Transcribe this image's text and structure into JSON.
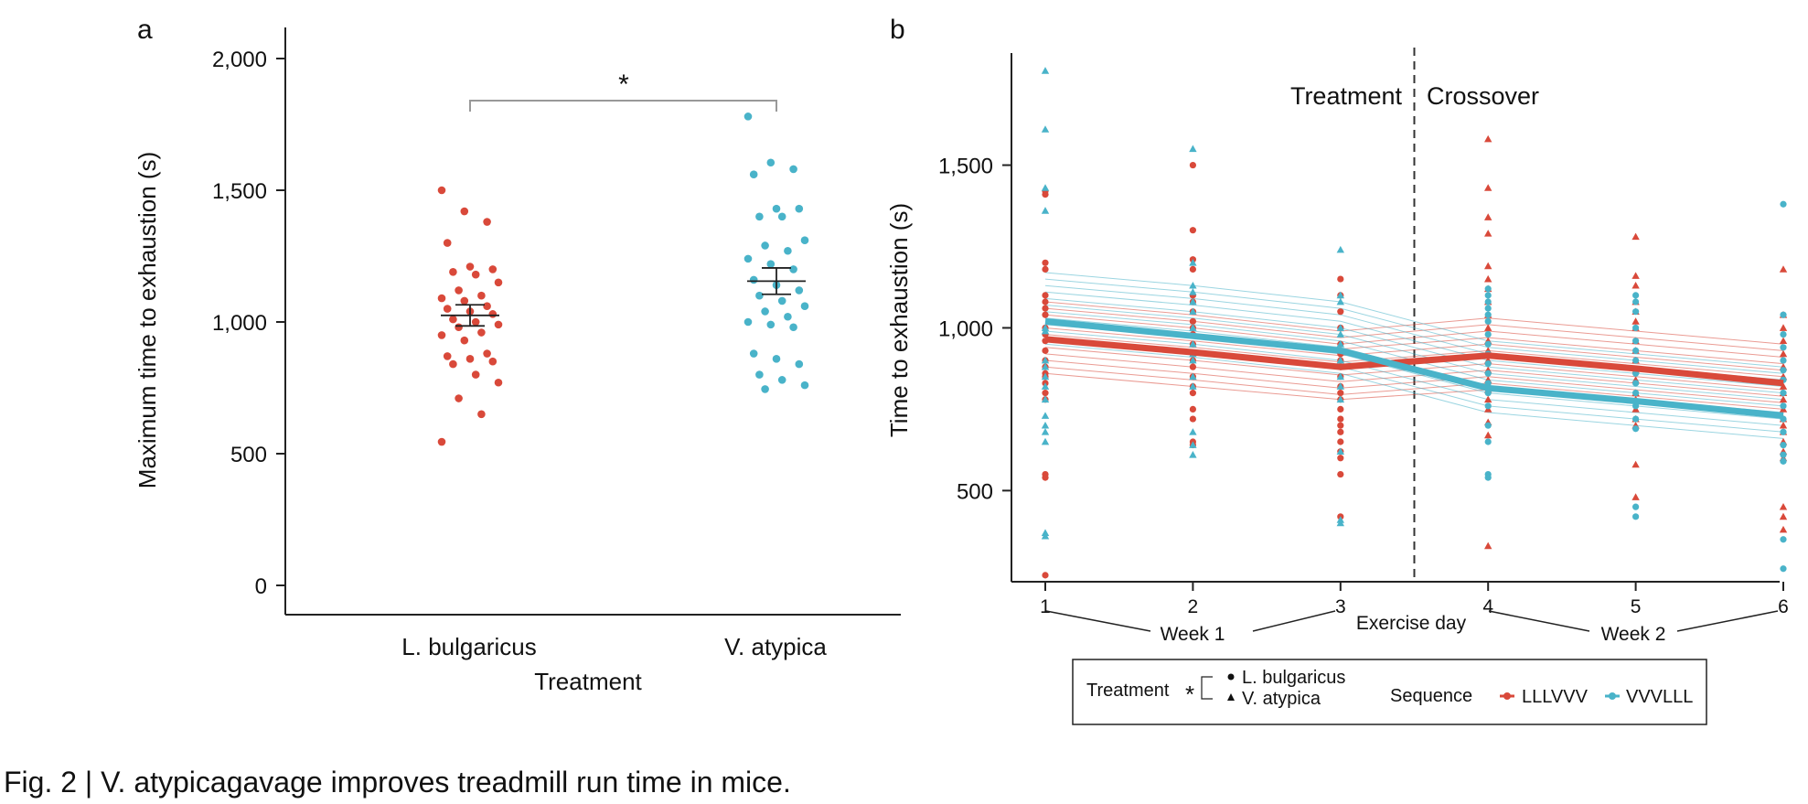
{
  "caption": "Fig. 2 | V. atypicagavage improves treadmill run time in mice.",
  "colors": {
    "red": "#d9493a",
    "blue": "#49b3c9",
    "axis": "#222222",
    "bracket": "#999999"
  },
  "chart_data": [
    {
      "panel": "a",
      "type": "scatter",
      "xlabel": "Treatment",
      "ylabel": "Maximum time to exhaustion (s)",
      "ylim": [
        0,
        2000
      ],
      "yticks": [
        "0",
        "500",
        "1,000",
        "1,500",
        "2,000"
      ],
      "categories": [
        "L. bulgaricus",
        "V. atypica"
      ],
      "significance": "*",
      "series": [
        {
          "name": "L. bulgaricus",
          "color": "#d9493a",
          "mean": 1025,
          "sem": 40,
          "values": [
            1500,
            1420,
            1380,
            1300,
            1210,
            1200,
            1190,
            1180,
            1150,
            1120,
            1100,
            1090,
            1080,
            1060,
            1050,
            1040,
            1030,
            1010,
            1000,
            990,
            980,
            960,
            950,
            930,
            880,
            870,
            860,
            850,
            840,
            800,
            770,
            710,
            650,
            545
          ]
        },
        {
          "name": "V. atypica",
          "color": "#49b3c9",
          "mean": 1155,
          "sem": 50,
          "values": [
            1780,
            1605,
            1580,
            1560,
            1430,
            1430,
            1400,
            1400,
            1310,
            1290,
            1270,
            1240,
            1220,
            1200,
            1160,
            1140,
            1120,
            1100,
            1080,
            1060,
            1040,
            1020,
            1000,
            990,
            980,
            880,
            860,
            840,
            800,
            780,
            760,
            745
          ]
        }
      ]
    },
    {
      "panel": "b",
      "type": "line",
      "xlabel": "Exercise day",
      "ylabel": "Time to exhaustion (s)",
      "x": [
        1,
        2,
        3,
        4,
        5,
        6
      ],
      "xtick_labels": [
        "1",
        "2",
        "3",
        "4",
        "5",
        "6"
      ],
      "ylim": [
        220,
        1850
      ],
      "yticks": [
        "500",
        "1,000",
        "1,500"
      ],
      "week_labels": [
        "Week 1",
        "Week 2"
      ],
      "phase_labels": [
        "Treatment",
        "Crossover"
      ],
      "crossover_at": 3.5,
      "series": [
        {
          "name": "LLLVVV",
          "color": "#d9493a",
          "mean": [
            965,
            925,
            880,
            915,
            875,
            830
          ],
          "subjects": [
            [
              1080,
              1040,
              990,
              1030,
              990,
              950
            ],
            [
              1060,
              1020,
              970,
              1010,
              970,
              930
            ],
            [
              1040,
              1000,
              950,
              990,
              950,
              910
            ],
            [
              1020,
              980,
              935,
              970,
              930,
              890
            ],
            [
              1000,
              960,
              915,
              950,
              910,
              870
            ],
            [
              980,
              940,
              895,
              930,
              890,
              850
            ],
            [
              960,
              920,
              875,
              910,
              870,
              830
            ],
            [
              940,
              900,
              855,
              890,
              850,
              810
            ],
            [
              920,
              880,
              835,
              870,
              830,
              790
            ],
            [
              900,
              860,
              815,
              850,
              810,
              770
            ],
            [
              880,
              840,
              795,
              830,
              790,
              750
            ],
            [
              860,
              820,
              780,
              810,
              770,
              730
            ]
          ],
          "points": [
            [
              1420,
              1410,
              1200,
              1180,
              1100,
              1080,
              1060,
              1040,
              1000,
              980,
              960,
              930,
              900,
              880,
              860,
              850,
              830,
              800,
              780,
              550,
              540,
              240
            ],
            [
              1500,
              1300,
              1210,
              1180,
              1100,
              1080,
              1050,
              1020,
              1000,
              980,
              950,
              920,
              900,
              880,
              850,
              820,
              800,
              750,
              720,
              650,
              640
            ],
            [
              1150,
              1100,
              1050,
              1000,
              950,
              920,
              900,
              880,
              850,
              820,
              800,
              780,
              750,
              720,
              700,
              680,
              650,
              620,
              600,
              550,
              420
            ],
            [
              1580,
              1430,
              1340,
              1290,
              1190,
              1150,
              1120,
              1080,
              1040,
              1000,
              960,
              930,
              900,
              870,
              840,
              810,
              780,
              750,
              710,
              670,
              330
            ],
            [
              1280,
              1160,
              1130,
              1080,
              1050,
              1020,
              1000,
              960,
              930,
              900,
              870,
              840,
              800,
              780,
              750,
              720,
              700,
              580,
              480
            ],
            [
              1180,
              1040,
              1000,
              960,
              920,
              880,
              850,
              820,
              800,
              780,
              750,
              720,
              700,
              680,
              650,
              620,
              600,
              450,
              420,
              380
            ]
          ]
        },
        {
          "name": "VVVLLL",
          "color": "#49b3c9",
          "mean": [
            1020,
            975,
            930,
            815,
            775,
            730
          ],
          "subjects": [
            [
              1170,
              1130,
              1080,
              960,
              920,
              880
            ],
            [
              1150,
              1110,
              1060,
              940,
              900,
              860
            ],
            [
              1130,
              1090,
              1040,
              920,
              880,
              840
            ],
            [
              1110,
              1070,
              1020,
              900,
              860,
              820
            ],
            [
              1090,
              1050,
              1000,
              880,
              840,
              800
            ],
            [
              1070,
              1030,
              980,
              860,
              820,
              780
            ],
            [
              1050,
              1010,
              960,
              840,
              800,
              760
            ],
            [
              1030,
              990,
              940,
              820,
              780,
              740
            ],
            [
              1010,
              970,
              920,
              800,
              760,
              720
            ],
            [
              990,
              950,
              900,
              780,
              740,
              700
            ],
            [
              970,
              930,
              880,
              760,
              720,
              680
            ],
            [
              950,
              910,
              860,
              740,
              700,
              660
            ]
          ],
          "points": [
            [
              1790,
              1610,
              1430,
              1360,
              1000,
              990,
              900,
              880,
              850,
              820,
              780,
              730,
              700,
              680,
              650,
              370,
              360
            ],
            [
              1550,
              1200,
              1130,
              1110,
              1080,
              1050,
              1000,
              950,
              920,
              900,
              850,
              820,
              680,
              640,
              610
            ],
            [
              1240,
              1100,
              1080,
              1000,
              980,
              950,
              900,
              850,
              820,
              780,
              620,
              410,
              400
            ],
            [
              1120,
              1100,
              1080,
              1060,
              1040,
              1020,
              980,
              950,
              920,
              890,
              860,
              830,
              800,
              760,
              700,
              650,
              550,
              540
            ],
            [
              1100,
              1080,
              1050,
              1000,
              960,
              930,
              900,
              860,
              830,
              800,
              760,
              720,
              690,
              450,
              420
            ],
            [
              1380,
              1040,
              980,
              940,
              900,
              870,
              840,
              800,
              760,
              720,
              680,
              640,
              610,
              590,
              350,
              260
            ]
          ]
        }
      ],
      "legend": {
        "treatment_title": "Treatment",
        "treatment_sig": "*",
        "treatment_items": [
          "L. bulgaricus",
          "V. atypica"
        ],
        "sequence_title": "Sequence",
        "sequence_items": [
          "LLLVVV",
          "VVVLLL"
        ]
      }
    }
  ]
}
